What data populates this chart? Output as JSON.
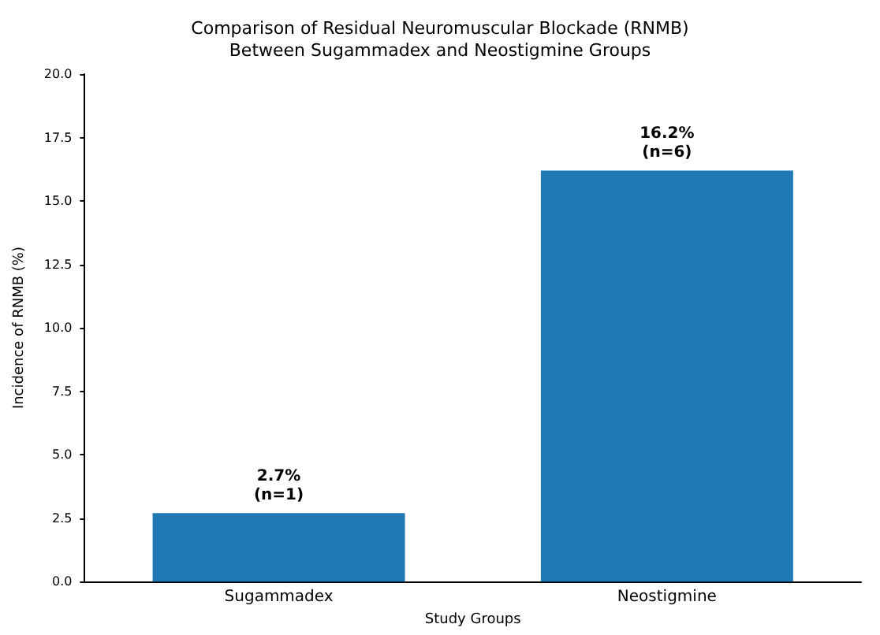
{
  "chart_data": {
    "type": "bar",
    "title": "Comparison of Residual Neuromuscular Blockade (RNMB)\nBetween Sugammadex and Neostigmine Groups",
    "xlabel": "Study Groups",
    "ylabel": "Incidence of RNMB (%)",
    "categories": [
      "Sugammadex",
      "Neostigmine"
    ],
    "values": [
      2.7,
      16.2
    ],
    "color": "#1f77b4",
    "value_labels": [
      "2.7%\n(n=1)",
      "16.2%\n(n=6)"
    ],
    "ylim": [
      0,
      20
    ],
    "yticks": [
      {
        "value": 0,
        "label": "0.0"
      },
      {
        "value": 2.5,
        "label": "2.5"
      },
      {
        "value": 5,
        "label": "5.0"
      },
      {
        "value": 7.5,
        "label": "7.5"
      },
      {
        "value": 10,
        "label": "10.0"
      },
      {
        "value": 12.5,
        "label": "12.5"
      },
      {
        "value": 15,
        "label": "15.0"
      },
      {
        "value": 17.5,
        "label": "17.5"
      },
      {
        "value": 20,
        "label": "20.0"
      }
    ],
    "grid": false
  }
}
